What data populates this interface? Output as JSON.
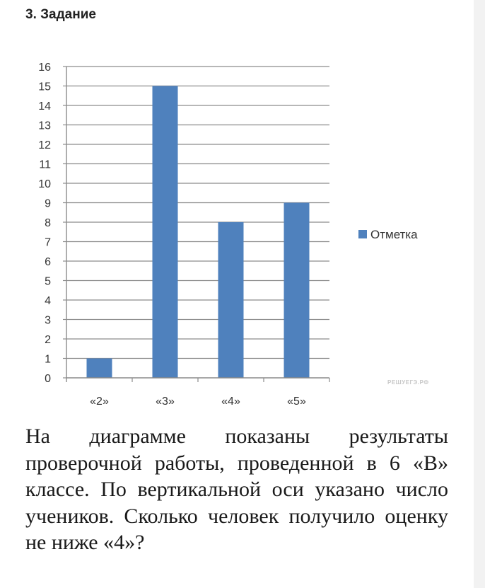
{
  "task": {
    "title": "3. Задание"
  },
  "chart_data": {
    "type": "bar",
    "title": "",
    "xlabel": "",
    "ylabel": "",
    "categories": [
      "«2»",
      "«3»",
      "«4»",
      "«5»"
    ],
    "series": [
      {
        "name": "Отметка",
        "values": [
          1,
          15,
          8,
          9
        ],
        "color": "#4f81bd"
      }
    ],
    "ylim": [
      0,
      16
    ],
    "yticks": [
      0,
      1,
      2,
      3,
      4,
      5,
      6,
      7,
      8,
      9,
      10,
      11,
      12,
      13,
      14,
      15,
      16
    ],
    "grid": true,
    "legend": "right"
  },
  "watermark": "РЕШУЕГЭ.РФ",
  "question": "На диаграмме показаны результаты проверочной работы, проведенной в 6 «В» классе. По вертикальной оси указано число учеников. Сколько человек получило оценку не ниже «4»?"
}
